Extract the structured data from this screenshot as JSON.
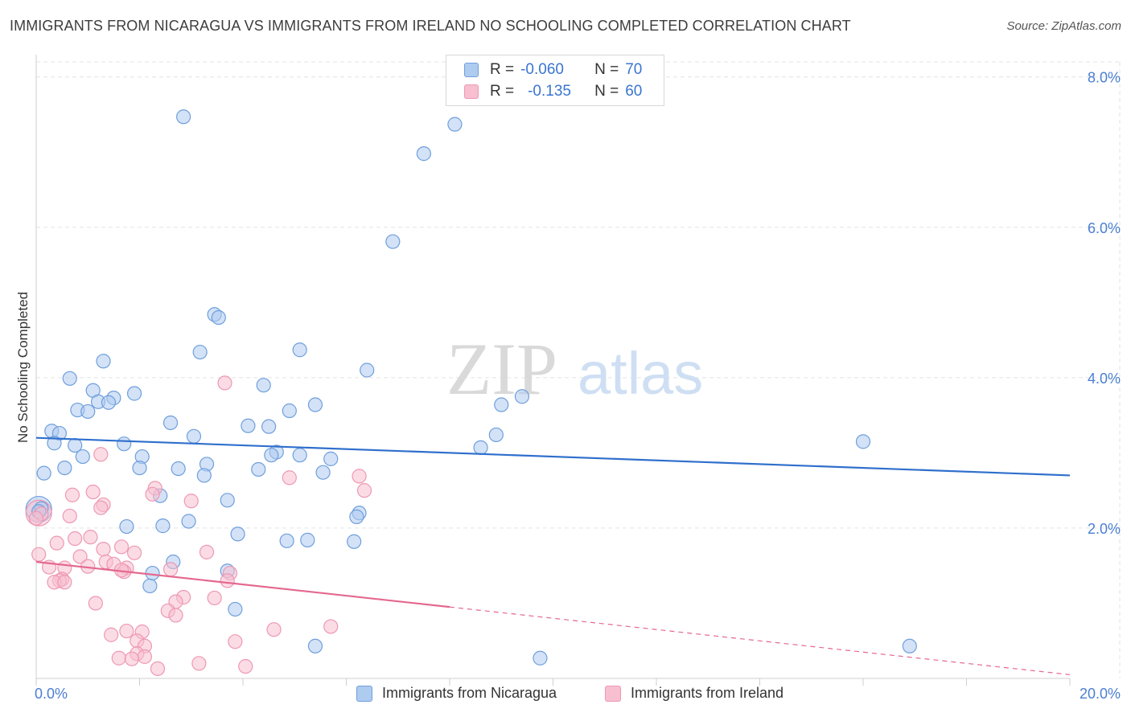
{
  "title": "IMMIGRANTS FROM NICARAGUA VS IMMIGRANTS FROM IRELAND NO SCHOOLING COMPLETED CORRELATION CHART",
  "source": "Source: ZipAtlas.com",
  "watermark": {
    "zip": "ZIP",
    "atlas": "atlas"
  },
  "legend": {
    "rows": [
      {
        "r_label": "R =",
        "r_value": "-0.060",
        "n_label": "N =",
        "n_value": "70"
      },
      {
        "r_label": "R =",
        "r_value": "-0.135",
        "n_label": "N =",
        "n_value": "60"
      }
    ]
  },
  "colors": {
    "nicaragua_fill": "#aecbf0",
    "nicaragua_stroke": "#6f9fdc",
    "nicaragua_line": "#2f6fcc",
    "ireland_fill": "#f7bfd0",
    "ireland_stroke": "#ee98b4",
    "ireland_line": "#e4688f",
    "grid": "#e3e3e3",
    "tick_text": "#4a7fd1"
  },
  "chart_data": {
    "type": "scatter",
    "title": "IMMIGRANTS FROM NICARAGUA VS IMMIGRANTS FROM IRELAND NO SCHOOLING COMPLETED CORRELATION CHART",
    "xlabel": "",
    "ylabel": "No Schooling Completed",
    "xlim": [
      0,
      20
    ],
    "ylim": [
      0,
      8.2
    ],
    "x_tick_labels": [
      "0.0%",
      "20.0%"
    ],
    "y_ticks": [
      2,
      4,
      6,
      8
    ],
    "y_tick_labels": [
      "2.0%",
      "4.0%",
      "6.0%",
      "8.0%"
    ],
    "grid": true,
    "legend_position": "bottom",
    "series": [
      {
        "name": "Immigrants from Nicaragua",
        "r": -0.06,
        "n": 70,
        "trend": {
          "x": [
            0,
            20
          ],
          "y": [
            3.2,
            2.7
          ],
          "dashed_from": null
        },
        "points": [
          [
            2.85,
            7.47
          ],
          [
            8.1,
            7.37
          ],
          [
            7.5,
            6.98
          ],
          [
            6.9,
            5.81
          ],
          [
            3.45,
            4.84
          ],
          [
            3.53,
            4.8
          ],
          [
            3.17,
            4.34
          ],
          [
            5.1,
            4.37
          ],
          [
            1.3,
            4.22
          ],
          [
            6.4,
            4.1
          ],
          [
            0.65,
            3.99
          ],
          [
            4.4,
            3.9
          ],
          [
            1.1,
            3.83
          ],
          [
            1.5,
            3.73
          ],
          [
            1.9,
            3.79
          ],
          [
            1.2,
            3.68
          ],
          [
            1.4,
            3.67
          ],
          [
            9.4,
            3.75
          ],
          [
            9.0,
            3.64
          ],
          [
            0.8,
            3.57
          ],
          [
            1.0,
            3.55
          ],
          [
            4.9,
            3.56
          ],
          [
            5.4,
            3.64
          ],
          [
            2.6,
            3.4
          ],
          [
            4.1,
            3.36
          ],
          [
            4.5,
            3.35
          ],
          [
            0.3,
            3.29
          ],
          [
            0.45,
            3.26
          ],
          [
            3.05,
            3.22
          ],
          [
            8.9,
            3.24
          ],
          [
            16.0,
            3.15
          ],
          [
            0.35,
            3.13
          ],
          [
            0.75,
            3.1
          ],
          [
            1.7,
            3.12
          ],
          [
            8.6,
            3.07
          ],
          [
            4.65,
            3.01
          ],
          [
            4.55,
            2.97
          ],
          [
            5.1,
            2.97
          ],
          [
            0.9,
            2.95
          ],
          [
            2.05,
            2.95
          ],
          [
            5.7,
            2.92
          ],
          [
            3.3,
            2.85
          ],
          [
            0.55,
            2.8
          ],
          [
            2.0,
            2.8
          ],
          [
            2.75,
            2.79
          ],
          [
            4.3,
            2.78
          ],
          [
            5.55,
            2.74
          ],
          [
            0.15,
            2.73
          ],
          [
            3.25,
            2.7
          ],
          [
            2.4,
            2.43
          ],
          [
            3.7,
            2.37
          ],
          [
            0.1,
            2.26
          ],
          [
            0.05,
            2.22
          ],
          [
            6.25,
            2.2
          ],
          [
            6.2,
            2.15
          ],
          [
            2.95,
            2.09
          ],
          [
            1.75,
            2.02
          ],
          [
            2.45,
            2.03
          ],
          [
            3.9,
            1.92
          ],
          [
            4.85,
            1.83
          ],
          [
            5.25,
            1.84
          ],
          [
            6.15,
            1.82
          ],
          [
            2.65,
            1.55
          ],
          [
            2.25,
            1.4
          ],
          [
            3.7,
            1.43
          ],
          [
            2.2,
            1.23
          ],
          [
            3.85,
            0.92
          ],
          [
            5.4,
            0.43
          ],
          [
            16.9,
            0.43
          ],
          [
            9.75,
            0.27
          ]
        ]
      },
      {
        "name": "Immigrants from Ireland",
        "r": -0.135,
        "n": 60,
        "trend": {
          "x": [
            0,
            20
          ],
          "y": [
            1.55,
            0.05
          ],
          "dashed_from": 8.0
        },
        "points": [
          [
            3.65,
            3.93
          ],
          [
            1.25,
            2.98
          ],
          [
            6.25,
            2.69
          ],
          [
            4.9,
            2.67
          ],
          [
            2.3,
            2.53
          ],
          [
            6.35,
            2.5
          ],
          [
            1.1,
            2.48
          ],
          [
            2.25,
            2.45
          ],
          [
            0.7,
            2.44
          ],
          [
            3.0,
            2.36
          ],
          [
            1.3,
            2.31
          ],
          [
            1.25,
            2.27
          ],
          [
            0.1,
            2.19
          ],
          [
            0.65,
            2.16
          ],
          [
            0.0,
            2.13
          ],
          [
            1.05,
            1.88
          ],
          [
            0.75,
            1.86
          ],
          [
            0.4,
            1.8
          ],
          [
            1.65,
            1.75
          ],
          [
            1.3,
            1.72
          ],
          [
            3.3,
            1.68
          ],
          [
            1.9,
            1.67
          ],
          [
            0.05,
            1.65
          ],
          [
            0.85,
            1.62
          ],
          [
            1.35,
            1.55
          ],
          [
            1.5,
            1.52
          ],
          [
            1.0,
            1.49
          ],
          [
            0.25,
            1.48
          ],
          [
            0.55,
            1.47
          ],
          [
            1.75,
            1.47
          ],
          [
            1.7,
            1.42
          ],
          [
            1.65,
            1.44
          ],
          [
            2.6,
            1.45
          ],
          [
            3.75,
            1.4
          ],
          [
            0.5,
            1.32
          ],
          [
            0.45,
            1.3
          ],
          [
            0.35,
            1.28
          ],
          [
            3.7,
            1.3
          ],
          [
            0.55,
            1.28
          ],
          [
            2.85,
            1.08
          ],
          [
            3.45,
            1.07
          ],
          [
            2.7,
            1.02
          ],
          [
            1.15,
            1.0
          ],
          [
            2.55,
            0.9
          ],
          [
            2.7,
            0.84
          ],
          [
            5.7,
            0.69
          ],
          [
            4.6,
            0.65
          ],
          [
            1.75,
            0.63
          ],
          [
            2.05,
            0.62
          ],
          [
            1.45,
            0.58
          ],
          [
            3.85,
            0.49
          ],
          [
            1.95,
            0.5
          ],
          [
            2.1,
            0.43
          ],
          [
            1.95,
            0.33
          ],
          [
            2.1,
            0.29
          ],
          [
            1.6,
            0.27
          ],
          [
            1.85,
            0.26
          ],
          [
            3.15,
            0.2
          ],
          [
            4.05,
            0.16
          ],
          [
            2.35,
            0.13
          ]
        ]
      }
    ],
    "bubbles": [
      {
        "series": 0,
        "x": 0.05,
        "y": 2.25
      },
      {
        "series": 1,
        "x": 0.05,
        "y": 2.2
      }
    ]
  }
}
